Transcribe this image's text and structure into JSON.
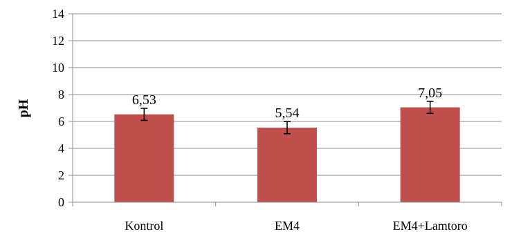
{
  "chart_data": {
    "type": "bar",
    "title": "",
    "xlabel": "",
    "ylabel": "pH",
    "categories": [
      "Kontrol",
      "EM4",
      "EM4+Lamtoro"
    ],
    "values": [
      6.53,
      5.54,
      7.05
    ],
    "value_labels": [
      "6,53",
      "5,54",
      "7,05"
    ],
    "error": [
      0.45,
      0.45,
      0.45
    ],
    "ylim": [
      0,
      14
    ],
    "yticks": [
      0,
      2,
      4,
      6,
      8,
      10,
      12,
      14
    ],
    "grid": "horizontal",
    "legend": "none",
    "bar_color": "#c0504d",
    "grid_color": "#8c8c8c"
  }
}
